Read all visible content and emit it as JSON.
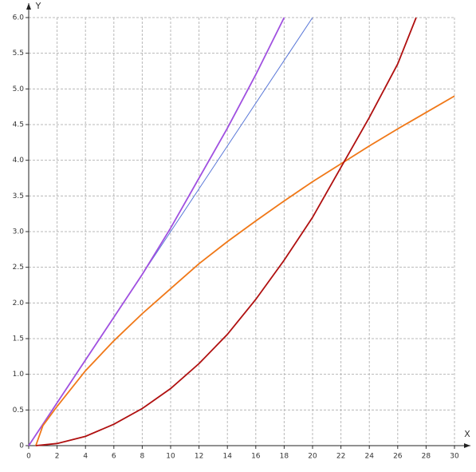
{
  "chart_data": {
    "type": "line",
    "xlabel": "X",
    "ylabel": "Y",
    "xlim": [
      0,
      30
    ],
    "ylim": [
      0,
      6
    ],
    "xticks": [
      0,
      2,
      4,
      6,
      8,
      10,
      12,
      14,
      16,
      18,
      20,
      22,
      24,
      26,
      28,
      30
    ],
    "yticks": [
      0,
      0.5,
      {
        "value": 1,
        "label": "1.0"
      },
      1.5,
      {
        "value": 2,
        "label": "2.0"
      },
      2.5,
      {
        "value": 3,
        "label": "3.0"
      },
      3.5,
      {
        "value": 4,
        "label": "4.0"
      },
      4.5,
      {
        "value": 5,
        "label": "5.0"
      },
      5.5,
      {
        "value": 6,
        "label": "6.0"
      }
    ],
    "grid": true,
    "series": [
      {
        "color": "#5a78d8",
        "x": [
          0,
          20
        ],
        "values": [
          0,
          6
        ]
      },
      {
        "color": "#a050e0",
        "x": [
          0,
          2,
          4,
          6,
          8,
          10,
          12,
          14,
          16,
          18
        ],
        "values": [
          0,
          0.6,
          1.2,
          1.8,
          2.4,
          3.05,
          3.75,
          4.45,
          5.2,
          6.0
        ]
      },
      {
        "color": "#f07818",
        "x": [
          0.5,
          1,
          2,
          4,
          6,
          8,
          10,
          12,
          14,
          16,
          18,
          20,
          22,
          24,
          26,
          28,
          30
        ],
        "values": [
          0,
          0.28,
          0.55,
          1.05,
          1.47,
          1.85,
          2.2,
          2.55,
          2.86,
          3.15,
          3.43,
          3.7,
          3.95,
          4.2,
          4.44,
          4.67,
          4.9
        ]
      },
      {
        "color": "#b01010",
        "x": [
          0.5,
          2,
          4,
          6,
          8,
          10,
          12,
          14,
          16,
          18,
          20,
          22,
          24,
          26,
          27.3
        ],
        "values": [
          0,
          0.03,
          0.13,
          0.3,
          0.52,
          0.8,
          1.15,
          1.56,
          2.05,
          2.6,
          3.2,
          3.9,
          4.6,
          5.35,
          6.0
        ]
      }
    ]
  }
}
